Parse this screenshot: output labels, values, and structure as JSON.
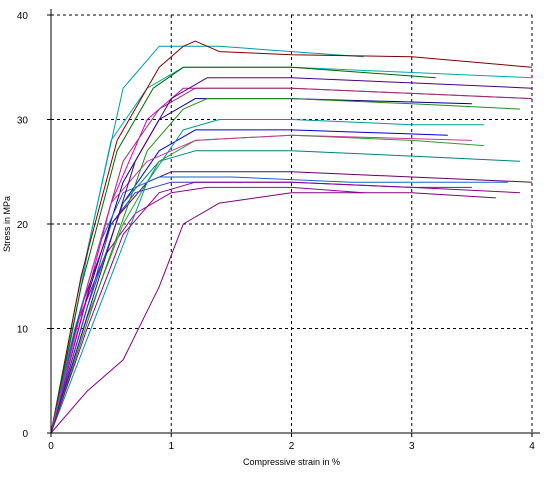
{
  "chart_data": {
    "type": "line",
    "title": "",
    "xlabel": "Compressive strain in %",
    "ylabel": "Stress in MPa",
    "xlim": [
      0,
      4
    ],
    "ylim": [
      0,
      40
    ],
    "x_ticks": [
      0,
      1,
      2,
      3,
      4
    ],
    "y_ticks": [
      0,
      10,
      20,
      30,
      40
    ],
    "x_tick_labels": [
      "0",
      "1",
      "2",
      "3",
      "4"
    ],
    "y_tick_labels": [
      "0",
      "10",
      "20",
      "30",
      "40"
    ],
    "grid": true,
    "grid_style": "dashed",
    "legend": "none",
    "series": [
      {
        "color": "#7f007f",
        "x": [
          0,
          0.3,
          0.6,
          0.9,
          1.1,
          1.4,
          2.0,
          3.0,
          3.7
        ],
        "y": [
          0,
          4,
          7,
          14,
          20,
          22,
          23,
          23,
          22.5
        ]
      },
      {
        "color": "#990099",
        "x": [
          0,
          0.2,
          0.45,
          0.7,
          1.0,
          1.3,
          2.0,
          2.6
        ],
        "y": [
          0,
          10,
          17,
          21,
          23,
          23.5,
          23.5,
          23
        ]
      },
      {
        "color": "#0099aa",
        "x": [
          0,
          0.15,
          0.35,
          0.6,
          0.9,
          1.4,
          2.0,
          2.6
        ],
        "y": [
          0,
          8,
          20,
          33,
          37,
          37,
          36.5,
          36
        ]
      },
      {
        "color": "#00aaaa",
        "x": [
          0,
          0.2,
          0.5,
          0.8,
          1.1,
          2.0,
          3.0,
          4.0
        ],
        "y": [
          0,
          12,
          28,
          33,
          35,
          35,
          34.5,
          34
        ]
      },
      {
        "color": "#800000",
        "x": [
          0,
          0.25,
          0.55,
          0.9,
          1.1,
          1.2,
          1.4,
          2.0,
          3.0,
          4.0
        ],
        "y": [
          0,
          15,
          28,
          35,
          37,
          37.5,
          36.5,
          36.2,
          36,
          35
        ]
      },
      {
        "color": "#006600",
        "x": [
          0,
          0.25,
          0.55,
          0.85,
          1.1,
          2.0,
          3.2
        ],
        "y": [
          0,
          14,
          27,
          33,
          35,
          35,
          34
        ]
      },
      {
        "color": "#000080",
        "x": [
          0,
          0.3,
          0.6,
          0.9,
          1.2,
          2.0,
          3.5
        ],
        "y": [
          0,
          13,
          24,
          30,
          32,
          32,
          31.5
        ]
      },
      {
        "color": "#0000cc",
        "x": [
          0,
          0.3,
          0.6,
          0.9,
          1.2,
          2.0,
          3.3
        ],
        "y": [
          0,
          12,
          22,
          27,
          29,
          29,
          28.5
        ]
      },
      {
        "color": "#cc00cc",
        "x": [
          0,
          0.25,
          0.5,
          0.8,
          1.1,
          2.0,
          3.0,
          4.0
        ],
        "y": [
          0,
          11,
          22,
          30,
          33,
          33,
          32.5,
          32
        ]
      },
      {
        "color": "#008080",
        "x": [
          0,
          0.3,
          0.6,
          0.9,
          1.2,
          2.0,
          3.0,
          3.9
        ],
        "y": [
          0,
          12,
          22,
          26,
          27,
          27,
          26.5,
          26
        ]
      },
      {
        "color": "#339933",
        "x": [
          0,
          0.3,
          0.6,
          0.9,
          1.2,
          2.0,
          3.0,
          3.6
        ],
        "y": [
          0,
          11,
          20,
          26,
          28,
          28.5,
          28,
          27.5
        ]
      },
      {
        "color": "#660066",
        "x": [
          0,
          0.25,
          0.5,
          0.8,
          1.0,
          2.0,
          3.0,
          4.0
        ],
        "y": [
          0,
          12,
          20,
          24,
          25,
          25,
          24.5,
          24
        ]
      },
      {
        "color": "#3333cc",
        "x": [
          0,
          0.3,
          0.5,
          0.7,
          1.0,
          2.0,
          3.0,
          3.5
        ],
        "y": [
          0,
          12,
          20,
          23,
          24,
          24,
          23.5,
          23.5
        ]
      },
      {
        "color": "#993366",
        "x": [
          0,
          0.3,
          0.6,
          0.9,
          1.2,
          2.0,
          3.0,
          4.0
        ],
        "y": [
          0,
          14,
          26,
          31,
          33,
          33,
          32.5,
          32
        ]
      },
      {
        "color": "#1166cc",
        "x": [
          0,
          0.2,
          0.4,
          0.6,
          0.9,
          1.5,
          2.5,
          3.8
        ],
        "y": [
          0,
          10,
          18,
          23,
          24.5,
          24.5,
          24,
          24
        ]
      },
      {
        "color": "#cc3399",
        "x": [
          0,
          0.15,
          0.3,
          0.5,
          0.8,
          1.2,
          2.0,
          3.5
        ],
        "y": [
          0,
          7,
          14,
          22,
          26,
          28,
          28.5,
          28
        ]
      },
      {
        "color": "#009999",
        "x": [
          0,
          0.4,
          0.8,
          1.1,
          1.4,
          2.0,
          3.0,
          3.6
        ],
        "y": [
          0,
          12,
          24,
          29,
          30,
          30,
          29.5,
          29.5
        ]
      },
      {
        "color": "#4b0082",
        "x": [
          0,
          0.35,
          0.7,
          1.0,
          1.3,
          2.0,
          3.0,
          4.0
        ],
        "y": [
          0,
          13,
          26,
          32,
          34,
          34,
          33.5,
          33
        ]
      },
      {
        "color": "#228b22",
        "x": [
          0,
          0.4,
          0.8,
          1.1,
          1.3,
          2.0,
          3.0,
          3.9
        ],
        "y": [
          0,
          14,
          27,
          31,
          32,
          32,
          31.5,
          31
        ]
      },
      {
        "color": "#8b008b",
        "x": [
          0,
          0.3,
          0.6,
          0.9,
          1.2,
          2.0,
          3.0,
          3.9
        ],
        "y": [
          0,
          10,
          19,
          23,
          24,
          24,
          23.5,
          23
        ]
      }
    ]
  }
}
